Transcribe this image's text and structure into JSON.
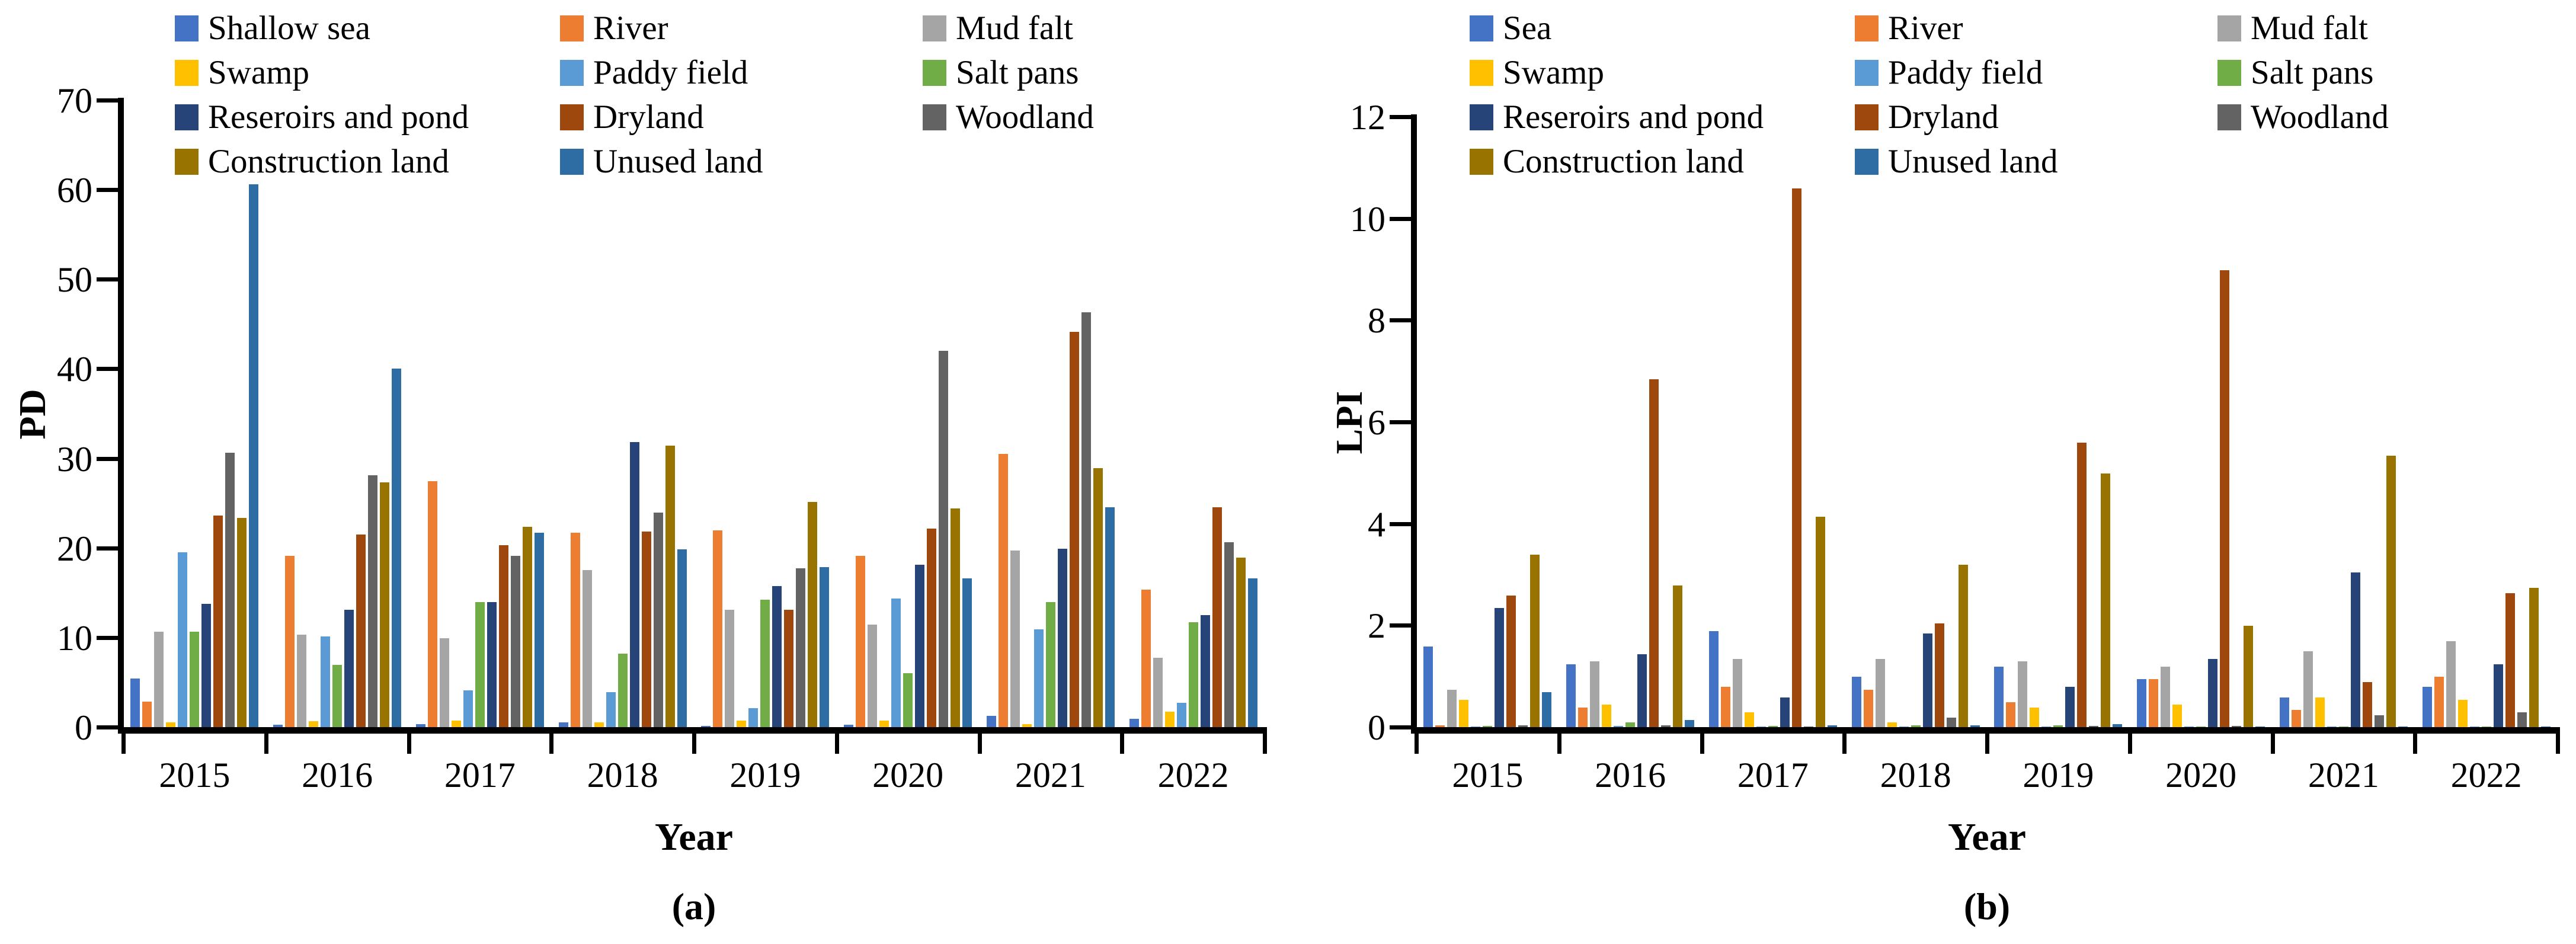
{
  "figure": {
    "background": "#FFFFFF",
    "text_color": "#000000",
    "axis_color": "#000000"
  },
  "chart_data": [
    {
      "type": "bar",
      "panel": "a",
      "caption": "(a)",
      "title": "",
      "xlabel": "Year",
      "ylabel": "PD",
      "ylim": [
        0,
        70
      ],
      "y_ticks": [
        0,
        10,
        20,
        30,
        40,
        50,
        60,
        70
      ],
      "categories": [
        "2015",
        "2016",
        "2017",
        "2018",
        "2019",
        "2020",
        "2021",
        "2022"
      ],
      "grid": false,
      "legend_position": "top-left, 3 columns, 4 rows",
      "series": [
        {
          "name": "Shallow sea",
          "color": "#4472C4",
          "values": [
            5.5,
            0.3,
            0.4,
            0.6,
            0.2,
            0.3,
            1.3,
            1.0
          ]
        },
        {
          "name": "River",
          "color": "#ED7D31",
          "values": [
            2.9,
            19.2,
            27.5,
            21.8,
            22.0,
            19.2,
            30.6,
            15.4
          ]
        },
        {
          "name": "Mud falt",
          "color": "#A5A5A5",
          "values": [
            10.7,
            10.4,
            10.0,
            17.6,
            13.2,
            11.5,
            19.8,
            7.8
          ]
        },
        {
          "name": "Swamp",
          "color": "#FFC000",
          "values": [
            0.6,
            0.7,
            0.8,
            0.6,
            0.8,
            0.8,
            0.4,
            1.8
          ]
        },
        {
          "name": "Paddy field",
          "color": "#5B9BD5",
          "values": [
            19.6,
            10.2,
            4.2,
            4.0,
            2.2,
            14.4,
            11.0,
            2.8
          ]
        },
        {
          "name": "Salt pans",
          "color": "#70AD47",
          "values": [
            10.7,
            7.0,
            14.0,
            8.3,
            14.3,
            6.1,
            14.0,
            11.8
          ]
        },
        {
          "name": "Reseroirs and pond",
          "color": "#264478",
          "values": [
            13.8,
            13.2,
            14.0,
            31.9,
            15.8,
            18.2,
            20.0,
            12.6
          ]
        },
        {
          "name": "Dryland",
          "color": "#9E480E",
          "values": [
            23.7,
            21.6,
            20.4,
            21.9,
            13.2,
            22.2,
            44.2,
            24.6
          ]
        },
        {
          "name": "Woodland",
          "color": "#636363",
          "values": [
            30.7,
            28.2,
            19.2,
            24.0,
            17.8,
            42.1,
            46.4,
            20.7
          ]
        },
        {
          "name": "Construction land",
          "color": "#997300",
          "values": [
            23.4,
            27.4,
            22.4,
            31.5,
            25.2,
            24.5,
            29.0,
            19.0
          ]
        },
        {
          "name": "Unused land",
          "color": "#2E6DA4",
          "values": [
            60.7,
            40.1,
            21.8,
            19.9,
            17.9,
            16.7,
            24.6,
            16.7
          ]
        }
      ]
    },
    {
      "type": "bar",
      "panel": "b",
      "caption": "(b)",
      "title": "",
      "xlabel": "Year",
      "ylabel": "LPI",
      "ylim": [
        0,
        12
      ],
      "y_ticks": [
        0,
        2,
        4,
        6,
        8,
        10,
        12
      ],
      "categories": [
        "2015",
        "2016",
        "2017",
        "2018",
        "2019",
        "2020",
        "2021",
        "2022"
      ],
      "grid": false,
      "legend_position": "top-left, 3 columns, 4 rows",
      "series": [
        {
          "name": "Sea",
          "color": "#4472C4",
          "values": [
            1.6,
            1.25,
            1.9,
            1.0,
            1.2,
            0.95,
            0.6,
            0.8
          ]
        },
        {
          "name": "River",
          "color": "#ED7D31",
          "values": [
            0.05,
            0.4,
            0.8,
            0.75,
            0.5,
            0.95,
            0.35,
            1.0
          ]
        },
        {
          "name": "Mud falt",
          "color": "#A5A5A5",
          "values": [
            0.75,
            1.3,
            1.35,
            1.35,
            1.3,
            1.2,
            1.5,
            1.7
          ]
        },
        {
          "name": "Swamp",
          "color": "#FFC000",
          "values": [
            0.55,
            0.45,
            0.3,
            0.1,
            0.4,
            0.45,
            0.6,
            0.55
          ]
        },
        {
          "name": "Paddy field",
          "color": "#5B9BD5",
          "values": [
            0.02,
            0.04,
            0.02,
            0.02,
            0.02,
            0.02,
            0.02,
            0.02
          ]
        },
        {
          "name": "Salt pans",
          "color": "#70AD47",
          "values": [
            0.03,
            0.1,
            0.04,
            0.05,
            0.05,
            0.02,
            0.02,
            0.02
          ]
        },
        {
          "name": "Reseroirs and pond",
          "color": "#264478",
          "values": [
            2.35,
            1.45,
            0.6,
            1.85,
            0.8,
            1.35,
            3.05,
            1.25
          ]
        },
        {
          "name": "Dryland",
          "color": "#9E480E",
          "values": [
            2.6,
            6.85,
            10.6,
            2.05,
            5.6,
            9.0,
            0.9,
            2.65
          ]
        },
        {
          "name": "Woodland",
          "color": "#636363",
          "values": [
            0.05,
            0.05,
            0.02,
            0.2,
            0.04,
            0.04,
            0.25,
            0.3
          ]
        },
        {
          "name": "Construction land",
          "color": "#997300",
          "values": [
            3.4,
            2.8,
            4.15,
            3.2,
            5.0,
            2.0,
            5.35,
            2.75
          ]
        },
        {
          "name": "Unused land",
          "color": "#2E6DA4",
          "values": [
            0.7,
            0.15,
            0.05,
            0.05,
            0.07,
            0.02,
            0.02,
            0.02
          ]
        }
      ]
    }
  ]
}
